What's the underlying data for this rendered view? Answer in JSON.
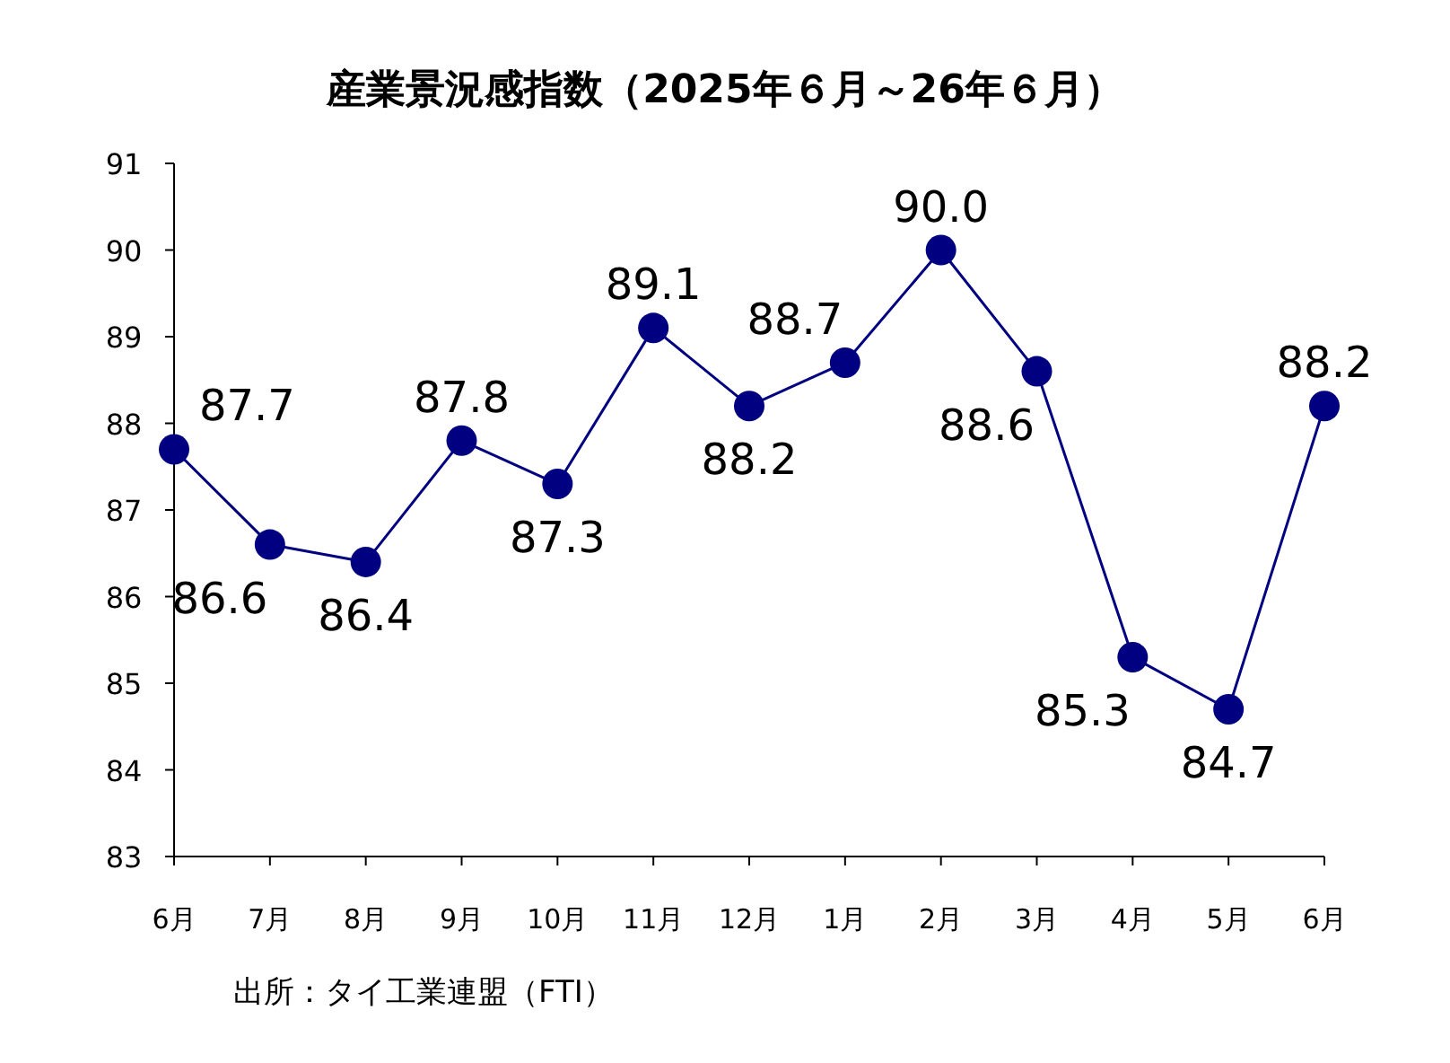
{
  "chart_data": {
    "type": "line",
    "title": "産業景況感指数（2025年６月～26年６月）",
    "categories": [
      "6月",
      "7月",
      "8月",
      "9月",
      "10月",
      "11月",
      "12月",
      "1月",
      "2月",
      "3月",
      "4月",
      "5月",
      "6月"
    ],
    "values": [
      87.7,
      86.6,
      86.4,
      87.8,
      87.3,
      89.1,
      88.2,
      88.7,
      90.0,
      88.6,
      85.3,
      84.7,
      88.2
    ],
    "value_labels": [
      "87.7",
      "86.6",
      "86.4",
      "87.8",
      "87.3",
      "89.1",
      "88.2",
      "88.7",
      "90.0",
      "88.6",
      "85.3",
      "84.7",
      "88.2"
    ],
    "color": "#000080",
    "marker": "circle",
    "ylim": [
      83,
      91
    ],
    "yticks": [
      83,
      84,
      85,
      86,
      87,
      88,
      89,
      90,
      91
    ],
    "annotations": [
      "出所：タイ工業連盟（FTI）"
    ]
  }
}
